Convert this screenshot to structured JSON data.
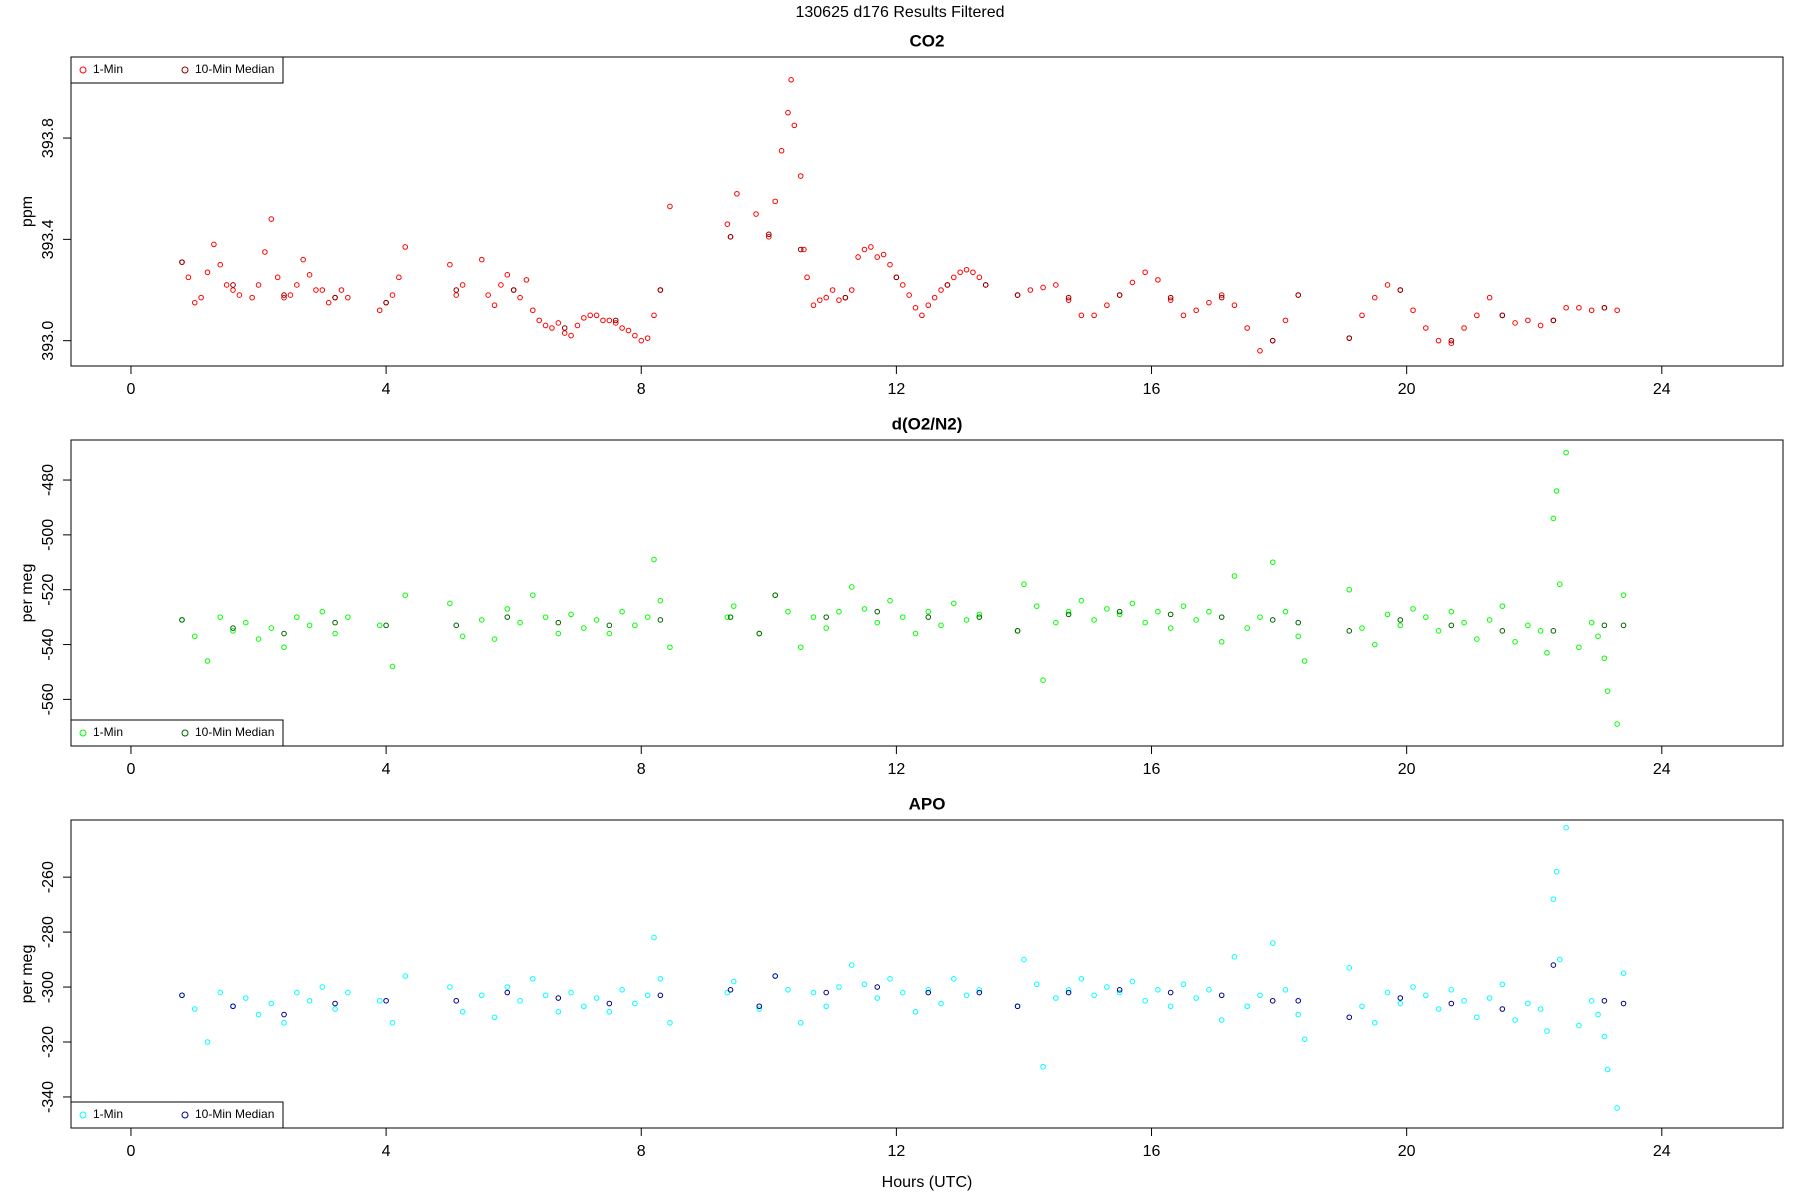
{
  "title": "130625   d176   Results Filtered",
  "chart_data": [
    {
      "type": "scatter",
      "title": "CO2",
      "ylabel": "ppm",
      "legend": "top-left",
      "xlim": [
        -0.94,
        25.9
      ],
      "xticks": [
        0,
        4,
        8,
        12,
        16,
        20,
        24
      ],
      "ylim": [
        392.9,
        394.12
      ],
      "yticks": [
        {
          "value": 393,
          "label": "393.0"
        },
        393.4,
        393.8
      ],
      "series": [
        {
          "name": "1-Min",
          "color": "#ff0000",
          "x": [
            0.8,
            0.9,
            1.0,
            1.1,
            1.2,
            1.3,
            1.4,
            1.5,
            1.6,
            1.7,
            1.9,
            2.0,
            2.1,
            2.2,
            2.3,
            2.4,
            2.5,
            2.6,
            2.7,
            2.8,
            2.9,
            3.0,
            3.1,
            3.2,
            3.3,
            3.4,
            3.9,
            4.0,
            4.1,
            4.2,
            4.3,
            5.0,
            5.1,
            5.2,
            5.5,
            5.6,
            5.7,
            5.8,
            5.9,
            6.0,
            6.1,
            6.2,
            6.3,
            6.4,
            6.5,
            6.6,
            6.7,
            6.8,
            6.9,
            7.0,
            7.1,
            7.2,
            7.3,
            7.4,
            7.5,
            7.6,
            7.7,
            7.8,
            7.9,
            8.0,
            8.1,
            8.2,
            8.3,
            8.45,
            9.35,
            9.4,
            9.5,
            9.8,
            10.0,
            10.1,
            10.2,
            10.3,
            10.35,
            10.4,
            10.5,
            10.55,
            10.6,
            10.7,
            10.8,
            10.9,
            11.0,
            11.1,
            11.2,
            11.3,
            11.4,
            11.5,
            11.6,
            11.7,
            11.8,
            11.9,
            12.0,
            12.1,
            12.2,
            12.3,
            12.4,
            12.5,
            12.6,
            12.7,
            12.8,
            12.9,
            13.0,
            13.1,
            13.2,
            13.3,
            13.4,
            13.9,
            14.1,
            14.3,
            14.5,
            14.7,
            14.9,
            15.1,
            15.3,
            15.5,
            15.7,
            15.9,
            16.1,
            16.3,
            16.5,
            16.7,
            16.9,
            17.1,
            17.3,
            17.5,
            17.7,
            17.9,
            18.1,
            18.3,
            19.1,
            19.3,
            19.5,
            19.7,
            19.9,
            20.1,
            20.3,
            20.5,
            20.7,
            20.9,
            21.1,
            21.3,
            21.5,
            21.7,
            21.9,
            22.1,
            22.3,
            22.5,
            22.7,
            22.9,
            23.1,
            23.3
          ],
          "values": [
            393.31,
            393.25,
            393.15,
            393.17,
            393.27,
            393.38,
            393.3,
            393.22,
            393.2,
            393.18,
            393.17,
            393.22,
            393.35,
            393.48,
            393.25,
            393.17,
            393.18,
            393.22,
            393.32,
            393.26,
            393.2,
            393.2,
            393.15,
            393.17,
            393.2,
            393.17,
            393.12,
            393.15,
            393.18,
            393.25,
            393.37,
            393.3,
            393.18,
            393.22,
            393.32,
            393.18,
            393.14,
            393.22,
            393.26,
            393.2,
            393.17,
            393.24,
            393.12,
            393.08,
            393.06,
            393.05,
            393.07,
            393.03,
            393.02,
            393.06,
            393.09,
            393.1,
            393.1,
            393.08,
            393.08,
            393.07,
            393.05,
            393.04,
            393.02,
            393.0,
            393.01,
            393.1,
            393.2,
            393.53,
            393.46,
            393.41,
            393.58,
            393.5,
            393.41,
            393.55,
            393.75,
            393.9,
            394.03,
            393.85,
            393.65,
            393.36,
            393.25,
            393.14,
            393.16,
            393.17,
            393.2,
            393.16,
            393.17,
            393.2,
            393.33,
            393.36,
            393.37,
            393.33,
            393.34,
            393.3,
            393.25,
            393.22,
            393.18,
            393.13,
            393.1,
            393.14,
            393.17,
            393.2,
            393.22,
            393.25,
            393.27,
            393.28,
            393.27,
            393.25,
            393.22,
            393.18,
            393.2,
            393.21,
            393.22,
            393.16,
            393.1,
            393.1,
            393.14,
            393.18,
            393.23,
            393.27,
            393.24,
            393.16,
            393.1,
            393.12,
            393.15,
            393.18,
            393.14,
            393.05,
            392.96,
            393.0,
            393.08,
            393.18,
            393.01,
            393.1,
            393.17,
            393.22,
            393.2,
            393.12,
            393.05,
            393.0,
            392.99,
            393.05,
            393.1,
            393.17,
            393.1,
            393.07,
            393.08,
            393.06,
            393.08,
            393.13,
            393.13,
            393.12,
            393.13,
            393.12
          ]
        },
        {
          "name": "10-Min Median",
          "color": "#8b0000",
          "x": [
            0.8,
            1.6,
            2.4,
            3.2,
            4.0,
            5.1,
            6.0,
            6.8,
            7.6,
            8.3,
            9.4,
            10.0,
            10.5,
            11.2,
            12.0,
            12.8,
            13.4,
            13.9,
            14.7,
            15.5,
            16.3,
            17.1,
            17.9,
            18.3,
            19.1,
            19.9,
            20.7,
            21.5,
            22.3,
            23.1
          ],
          "values": [
            393.31,
            393.22,
            393.18,
            393.17,
            393.15,
            393.2,
            393.2,
            393.05,
            393.08,
            393.2,
            393.41,
            393.42,
            393.36,
            393.17,
            393.25,
            393.22,
            393.22,
            393.18,
            393.17,
            393.18,
            393.17,
            393.17,
            393.0,
            393.18,
            393.01,
            393.2,
            393.0,
            393.1,
            393.08,
            393.13
          ]
        }
      ]
    },
    {
      "type": "scatter",
      "title": "d(O2/N2)",
      "ylabel": "per meg",
      "legend": "bottom-left",
      "xlim": [
        -0.94,
        25.9
      ],
      "xticks": [
        0,
        4,
        8,
        12,
        16,
        20,
        24
      ],
      "ylim": [
        -577,
        -465.4
      ],
      "yticks": [
        -560,
        -540,
        -520,
        -500,
        -480
      ],
      "series": [
        {
          "name": "1-Min",
          "color": "#00ff00",
          "x": [
            0.8,
            1.0,
            1.2,
            1.4,
            1.6,
            1.8,
            2.0,
            2.2,
            2.4,
            2.6,
            2.8,
            3.0,
            3.2,
            3.4,
            3.9,
            4.1,
            4.3,
            5.0,
            5.2,
            5.5,
            5.7,
            5.9,
            6.1,
            6.3,
            6.5,
            6.7,
            6.9,
            7.1,
            7.3,
            7.5,
            7.7,
            7.9,
            8.1,
            8.2,
            8.3,
            8.45,
            9.35,
            9.45,
            9.85,
            10.1,
            10.3,
            10.5,
            10.7,
            10.9,
            11.1,
            11.3,
            11.5,
            11.7,
            11.9,
            12.1,
            12.3,
            12.5,
            12.7,
            12.9,
            13.1,
            13.3,
            13.9,
            14.0,
            14.2,
            14.3,
            14.5,
            14.7,
            14.9,
            15.1,
            15.3,
            15.5,
            15.7,
            15.9,
            16.1,
            16.3,
            16.5,
            16.7,
            16.9,
            17.1,
            17.3,
            17.5,
            17.7,
            17.9,
            18.1,
            18.3,
            18.4,
            19.1,
            19.3,
            19.5,
            19.7,
            19.9,
            20.1,
            20.3,
            20.5,
            20.7,
            20.9,
            21.1,
            21.3,
            21.5,
            21.7,
            21.9,
            22.1,
            22.2,
            22.3,
            22.35,
            22.4,
            22.5,
            22.7,
            22.9,
            23.0,
            23.1,
            23.15,
            23.3,
            23.4
          ],
          "values": [
            -531,
            -537,
            -546,
            -530,
            -535,
            -532,
            -538,
            -534,
            -541,
            -530,
            -533,
            -528,
            -536,
            -530,
            -533,
            -548,
            -522,
            -525,
            -537,
            -531,
            -538,
            -527,
            -532,
            -522,
            -530,
            -536,
            -529,
            -534,
            -531,
            -536,
            -528,
            -533,
            -530,
            -509,
            -524,
            -541,
            -530,
            -526,
            -536,
            -522,
            -528,
            -541,
            -530,
            -534,
            -528,
            -519,
            -527,
            -532,
            -524,
            -530,
            -536,
            -528,
            -533,
            -525,
            -531,
            -529,
            -535,
            -518,
            -526,
            -553,
            -532,
            -528,
            -524,
            -531,
            -527,
            -529,
            -525,
            -532,
            -528,
            -534,
            -526,
            -531,
            -528,
            -539,
            -515,
            -534,
            -530,
            -510,
            -528,
            -537,
            -546,
            -520,
            -534,
            -540,
            -529,
            -533,
            -527,
            -530,
            -535,
            -528,
            -532,
            -538,
            -531,
            -526,
            -539,
            -533,
            -535,
            -543,
            -494,
            -484,
            -518,
            -470,
            -541,
            -532,
            -537,
            -545,
            -557,
            -569,
            -522
          ]
        },
        {
          "name": "10-Min Median",
          "color": "#006400",
          "x": [
            0.8,
            1.6,
            2.4,
            3.2,
            4.0,
            5.1,
            5.9,
            6.7,
            7.5,
            8.3,
            9.4,
            9.85,
            10.1,
            10.9,
            11.7,
            12.5,
            13.3,
            13.9,
            14.7,
            15.5,
            16.3,
            17.1,
            17.9,
            18.3,
            19.1,
            19.9,
            20.7,
            21.5,
            22.3,
            23.1,
            23.4
          ],
          "values": [
            -531,
            -534,
            -536,
            -532,
            -533,
            -533,
            -530,
            -532,
            -533,
            -531,
            -530,
            -536,
            -522,
            -530,
            -528,
            -530,
            -530,
            -535,
            -529,
            -528,
            -529,
            -530,
            -531,
            -532,
            -535,
            -531,
            -533,
            -535,
            -535,
            -533,
            -533
          ]
        }
      ]
    },
    {
      "type": "scatter",
      "title": "APO",
      "ylabel": "per meg",
      "xlabel": "Hours (UTC)",
      "legend": "bottom-left",
      "xlim": [
        -0.94,
        25.9
      ],
      "xticks": [
        0,
        4,
        8,
        12,
        16,
        20,
        24
      ],
      "ylim": [
        -351.3,
        -239.2
      ],
      "yticks": [
        -340,
        -320,
        -300,
        -280,
        -260
      ],
      "series": [
        {
          "name": "1-Min",
          "color": "#00ffff",
          "x": [
            0.8,
            1.0,
            1.2,
            1.4,
            1.6,
            1.8,
            2.0,
            2.2,
            2.4,
            2.6,
            2.8,
            3.0,
            3.2,
            3.4,
            3.9,
            4.1,
            4.3,
            5.0,
            5.2,
            5.5,
            5.7,
            5.9,
            6.1,
            6.3,
            6.5,
            6.7,
            6.9,
            7.1,
            7.3,
            7.5,
            7.7,
            7.9,
            8.1,
            8.2,
            8.3,
            8.45,
            9.35,
            9.45,
            9.85,
            10.1,
            10.3,
            10.5,
            10.7,
            10.9,
            11.1,
            11.3,
            11.5,
            11.7,
            11.9,
            12.1,
            12.3,
            12.5,
            12.7,
            12.9,
            13.1,
            13.3,
            13.9,
            14.0,
            14.2,
            14.3,
            14.5,
            14.7,
            14.9,
            15.1,
            15.3,
            15.5,
            15.7,
            15.9,
            16.1,
            16.3,
            16.5,
            16.7,
            16.9,
            17.1,
            17.3,
            17.5,
            17.7,
            17.9,
            18.1,
            18.3,
            18.4,
            19.1,
            19.3,
            19.5,
            19.7,
            19.9,
            20.1,
            20.3,
            20.5,
            20.7,
            20.9,
            21.1,
            21.3,
            21.5,
            21.7,
            21.9,
            22.1,
            22.2,
            22.3,
            22.35,
            22.4,
            22.5,
            22.7,
            22.9,
            23.0,
            23.1,
            23.15,
            23.3,
            23.4
          ],
          "values": [
            -303,
            -308,
            -320,
            -302,
            -307,
            -304,
            -310,
            -306,
            -313,
            -302,
            -305,
            -300,
            -308,
            -302,
            -305,
            -313,
            -296,
            -300,
            -309,
            -303,
            -311,
            -300,
            -305,
            -297,
            -303,
            -309,
            -302,
            -307,
            -304,
            -309,
            -301,
            -306,
            -303,
            -282,
            -297,
            -313,
            -302,
            -298,
            -308,
            -296,
            -301,
            -313,
            -302,
            -307,
            -300,
            -292,
            -299,
            -304,
            -297,
            -302,
            -309,
            -301,
            -306,
            -297,
            -303,
            -301,
            -307,
            -290,
            -299,
            -329,
            -304,
            -301,
            -297,
            -303,
            -300,
            -302,
            -298,
            -305,
            -301,
            -307,
            -299,
            -304,
            -301,
            -312,
            -289,
            -307,
            -303,
            -284,
            -301,
            -310,
            -319,
            -293,
            -307,
            -313,
            -302,
            -306,
            -300,
            -303,
            -308,
            -301,
            -305,
            -311,
            -304,
            -299,
            -312,
            -306,
            -308,
            -316,
            -268,
            -258,
            -290,
            -242,
            -314,
            -305,
            -310,
            -318,
            -330,
            -344,
            -295
          ]
        },
        {
          "name": "10-Min Median",
          "color": "#00008b",
          "x": [
            0.8,
            1.6,
            2.4,
            3.2,
            4.0,
            5.1,
            5.9,
            6.7,
            7.5,
            8.3,
            9.4,
            9.85,
            10.1,
            10.9,
            11.7,
            12.5,
            13.3,
            13.9,
            14.7,
            15.5,
            16.3,
            17.1,
            17.9,
            18.3,
            19.1,
            19.9,
            20.7,
            21.5,
            22.3,
            23.1,
            23.4
          ],
          "values": [
            -303,
            -307,
            -310,
            -306,
            -305,
            -305,
            -302,
            -304,
            -306,
            -303,
            -301,
            -307,
            -296,
            -302,
            -300,
            -302,
            -302,
            -307,
            -302,
            -301,
            -302,
            -303,
            -305,
            -305,
            -311,
            -304,
            -306,
            -308,
            -292,
            -305,
            -306
          ]
        }
      ]
    }
  ]
}
